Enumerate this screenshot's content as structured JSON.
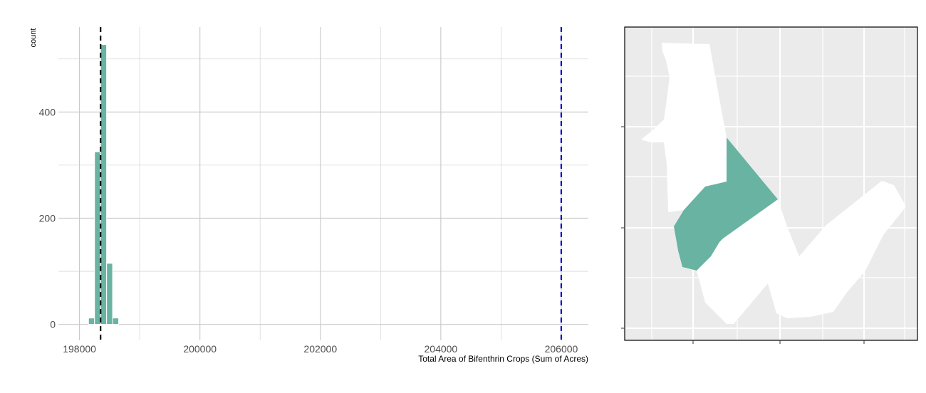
{
  "chart_data": [
    {
      "type": "bar",
      "subtype": "histogram",
      "ylabel": "count",
      "xlabel": "Total Area of Bifenthrin Crops (Sum of Acres)",
      "xlim": [
        197650,
        206450
      ],
      "ylim": [
        -30,
        560
      ],
      "x_ticks": [
        198000,
        200000,
        202000,
        204000,
        206000
      ],
      "y_ticks": [
        0,
        200,
        400
      ],
      "grid": true,
      "bar_color": "#69b3a2",
      "bin_width": 100,
      "bins": [
        {
          "x": 198200,
          "count": 12
        },
        {
          "x": 198300,
          "count": 325
        },
        {
          "x": 198400,
          "count": 527
        },
        {
          "x": 198500,
          "count": 115
        },
        {
          "x": 198600,
          "count": 12
        }
      ],
      "vlines": [
        {
          "x": 198350,
          "color": "#000000",
          "style": "dashed"
        },
        {
          "x": 206000,
          "color": "#0000cc",
          "style": "dashed"
        }
      ]
    },
    {
      "type": "map",
      "background": "#ebebeb",
      "region_fill": "#ffffff",
      "highlight_fill": "#69b3a2"
    }
  ]
}
